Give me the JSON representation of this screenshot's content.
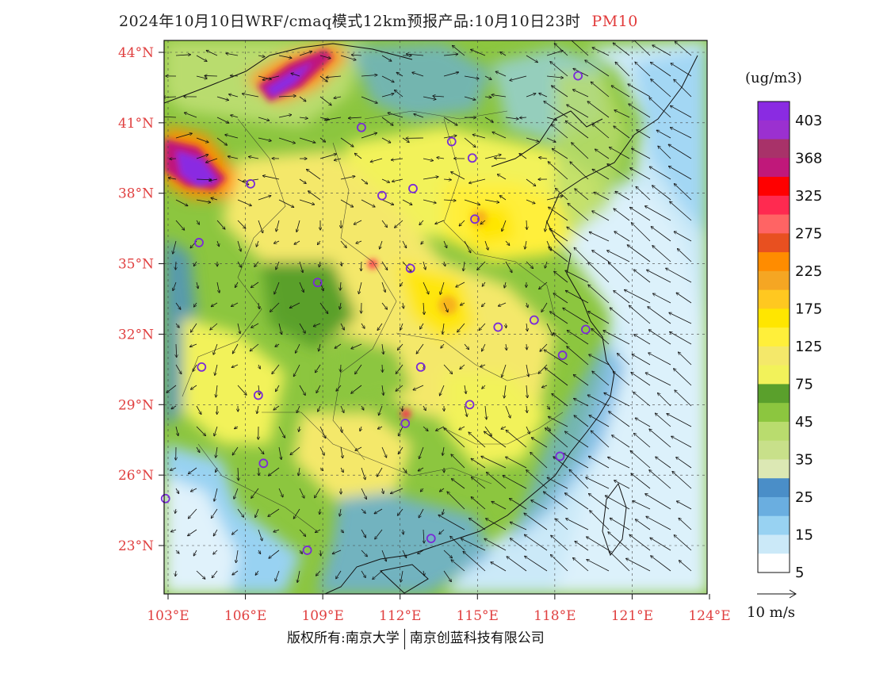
{
  "title": {
    "main": "2024年10月10日WRF/cmaq模式12km预报产品:10月10日23时",
    "pollutant": "PM10"
  },
  "map": {
    "lon_labels": [
      "103°E",
      "106°E",
      "109°E",
      "112°E",
      "115°E",
      "118°E",
      "121°E",
      "124°E"
    ],
    "lat_labels": [
      "44°N",
      "41°N",
      "38°N",
      "35°N",
      "32°N",
      "29°N",
      "26°N",
      "23°N"
    ],
    "stations": [
      {
        "lon": 118.9,
        "lat": 43.0
      },
      {
        "lon": 110.5,
        "lat": 40.8
      },
      {
        "lon": 114.0,
        "lat": 40.2
      },
      {
        "lon": 114.8,
        "lat": 39.5
      },
      {
        "lon": 106.2,
        "lat": 38.4
      },
      {
        "lon": 111.3,
        "lat": 37.9
      },
      {
        "lon": 112.5,
        "lat": 38.2
      },
      {
        "lon": 114.9,
        "lat": 36.9
      },
      {
        "lon": 104.2,
        "lat": 35.9
      },
      {
        "lon": 112.4,
        "lat": 34.8
      },
      {
        "lon": 108.8,
        "lat": 34.2
      },
      {
        "lon": 115.8,
        "lat": 32.3
      },
      {
        "lon": 117.2,
        "lat": 32.6
      },
      {
        "lon": 119.2,
        "lat": 32.2
      },
      {
        "lon": 118.3,
        "lat": 31.1
      },
      {
        "lon": 104.3,
        "lat": 30.6
      },
      {
        "lon": 112.8,
        "lat": 30.6
      },
      {
        "lon": 106.5,
        "lat": 29.4
      },
      {
        "lon": 114.7,
        "lat": 29.0
      },
      {
        "lon": 112.2,
        "lat": 28.2
      },
      {
        "lon": 118.2,
        "lat": 26.8
      },
      {
        "lon": 106.7,
        "lat": 26.5
      },
      {
        "lon": 102.9,
        "lat": 25.0
      },
      {
        "lon": 108.4,
        "lat": 22.8
      },
      {
        "lon": 113.2,
        "lat": 23.3
      }
    ]
  },
  "colorbar": {
    "units": "(ug/m3)",
    "levels": [
      "403",
      "368",
      "325",
      "275",
      "225",
      "175",
      "125",
      "75",
      "45",
      "35",
      "25",
      "15",
      "5"
    ],
    "colors": [
      "#8a2be2",
      "#9b30d0",
      "#a83269",
      "#c0187a",
      "#ff0000",
      "#ff2a50",
      "#ff6464",
      "#e85020",
      "#ff8c00",
      "#f5a623",
      "#ffc820",
      "#ffe600",
      "#ffef3a",
      "#f4e86a",
      "#f2f25a",
      "#5aa02c",
      "#8cc63f",
      "#b9dc6e",
      "#c8e08a",
      "#dce8b4",
      "#4a8ec8",
      "#6aaee0",
      "#98d2f2",
      "#cbe9f8",
      "#ffffff"
    ]
  },
  "wind_reference": {
    "label": "10 m/s"
  },
  "footer": {
    "copyright": "版权所有:南京大学",
    "company": "南京创蓝科技有限公司"
  }
}
